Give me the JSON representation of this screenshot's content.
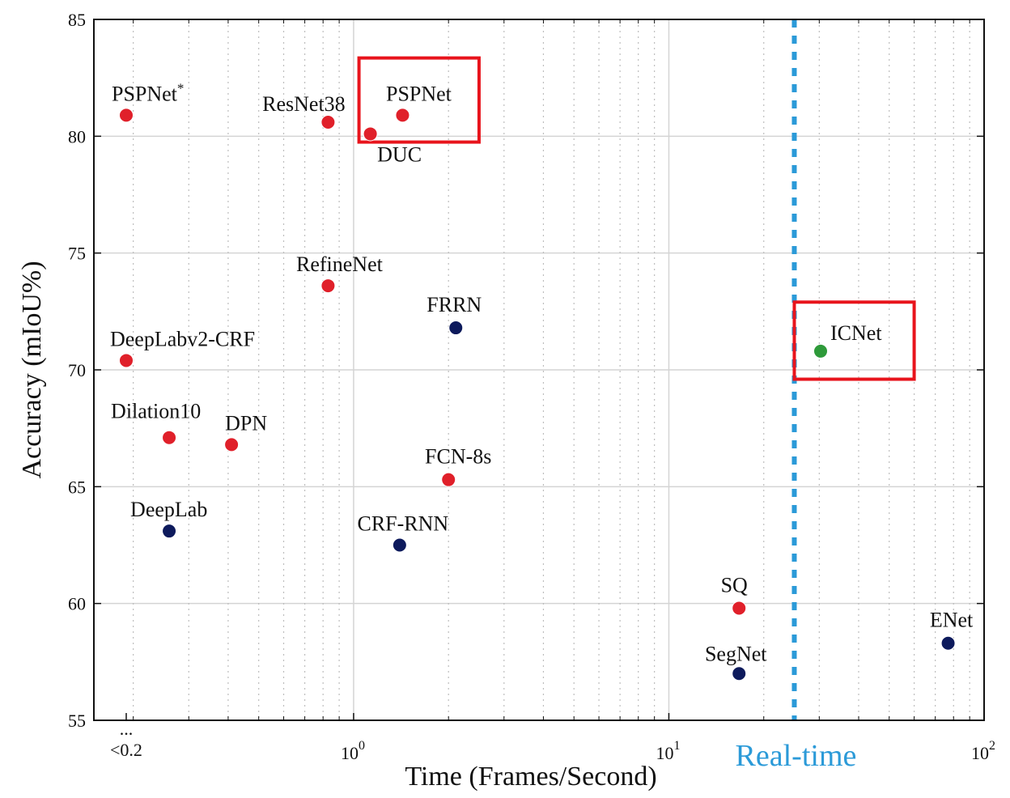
{
  "chart_data": {
    "type": "scatter",
    "title": "",
    "xlabel": "Time (Frames/Second)",
    "ylabel": "Accuracy (mIoU%)",
    "x_scale": "log",
    "xlim": [
      0.15,
      100
    ],
    "ylim": [
      55,
      85
    ],
    "yticks": [
      55,
      60,
      65,
      70,
      75,
      80,
      85
    ],
    "xticks": [
      {
        "value": 0.19,
        "label": "<0.2",
        "extra": "..."
      },
      {
        "value": 1,
        "base": "10",
        "exp": "0"
      },
      {
        "value": 10,
        "base": "10",
        "exp": "1"
      },
      {
        "value": 100,
        "base": "10",
        "exp": "2"
      }
    ],
    "grid": true,
    "colors": {
      "red": "#e0202a",
      "navy": "#0d1a5c",
      "green": "#2e9a3a",
      "highlight": "#e8141c",
      "realtime": "#2b9ad8"
    },
    "points": [
      {
        "name": "PSPNet",
        "sup": "*",
        "x": 0.19,
        "y": 80.9,
        "color": "red"
      },
      {
        "name": "ResNet38",
        "x": 0.83,
        "y": 80.6,
        "color": "red"
      },
      {
        "name": "DUC",
        "x": 1.13,
        "y": 80.1,
        "color": "red"
      },
      {
        "name": "PSPNet",
        "x": 1.43,
        "y": 80.9,
        "color": "red"
      },
      {
        "name": "RefineNet",
        "x": 0.83,
        "y": 73.6,
        "color": "red"
      },
      {
        "name": "FRRN",
        "x": 2.11,
        "y": 71.8,
        "color": "navy"
      },
      {
        "name": "DeepLabv2-CRF",
        "x": 0.19,
        "y": 70.4,
        "color": "red"
      },
      {
        "name": "ICNet",
        "x": 30.3,
        "y": 70.8,
        "color": "green"
      },
      {
        "name": "Dilation10",
        "x": 0.26,
        "y": 67.1,
        "color": "red"
      },
      {
        "name": "DPN",
        "x": 0.41,
        "y": 66.8,
        "color": "red"
      },
      {
        "name": "FCN-8s",
        "x": 2.0,
        "y": 65.3,
        "color": "red"
      },
      {
        "name": "DeepLab",
        "x": 0.26,
        "y": 63.1,
        "color": "navy"
      },
      {
        "name": "CRF-RNN",
        "x": 1.4,
        "y": 62.5,
        "color": "navy"
      },
      {
        "name": "SQ",
        "x": 16.7,
        "y": 59.8,
        "color": "red"
      },
      {
        "name": "SegNet",
        "x": 16.7,
        "y": 57.0,
        "color": "navy"
      },
      {
        "name": "ENet",
        "x": 76.9,
        "y": 58.3,
        "color": "navy"
      }
    ],
    "realtime": {
      "x": 25,
      "label": "Real-time"
    },
    "highlights": [
      {
        "x": [
          1.04,
          2.5
        ],
        "y": [
          79.75,
          83.35
        ]
      },
      {
        "x": [
          25,
          60
        ],
        "y": [
          69.6,
          72.9
        ]
      }
    ]
  }
}
